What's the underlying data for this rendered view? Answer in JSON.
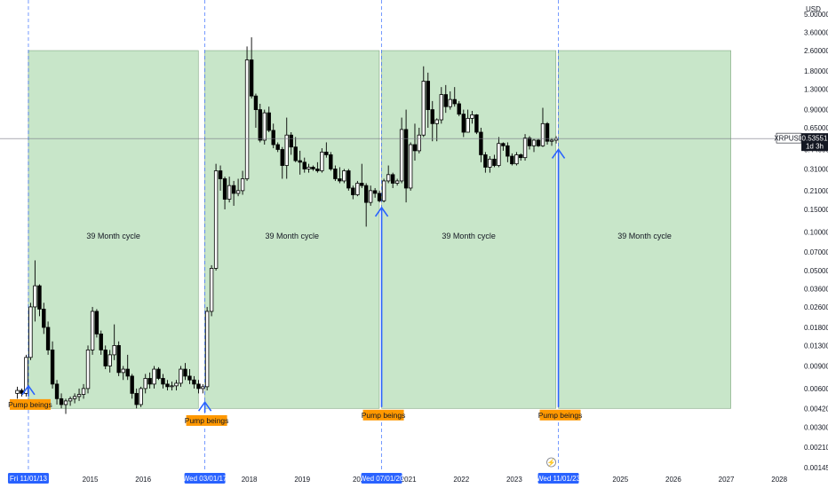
{
  "chart_data": {
    "type": "candlestick",
    "symbol": "XRPUSD",
    "currency": "USD",
    "scale": "log",
    "ylim": [
      0.00145,
      5.0
    ],
    "xlim": [
      "2013-09-01",
      "2028-06-01"
    ],
    "y_ticks": [
      "5.00000",
      "3.60000",
      "2.60000",
      "1.80000",
      "1.30000",
      "0.90000",
      "0.65000",
      "0.44000",
      "0.31000",
      "0.21000",
      "0.15000",
      "0.10000",
      "0.07000",
      "0.05000",
      "0.03600",
      "0.02600",
      "0.01800",
      "0.01300",
      "0.00900",
      "0.00600",
      "0.00420",
      "0.00300",
      "0.00210",
      "0.00145"
    ],
    "x_ticks": [
      {
        "label": "2015",
        "date": "2015-01-01"
      },
      {
        "label": "2016",
        "date": "2016-01-01"
      },
      {
        "label": "2018",
        "date": "2018-01-01"
      },
      {
        "label": "2019",
        "date": "2019-01-01"
      },
      {
        "label": "2021",
        "date": "2021-01-01"
      },
      {
        "label": "2022",
        "date": "2022-01-01"
      },
      {
        "label": "2023",
        "date": "2023-01-01"
      },
      {
        "label": "2025",
        "date": "2025-01-01"
      },
      {
        "label": "2026",
        "date": "2026-01-01"
      },
      {
        "label": "2027",
        "date": "2027-01-01"
      },
      {
        "label": "2028",
        "date": "2028-01-01"
      }
    ],
    "date_badges": [
      {
        "label": "Fri 11/01/13",
        "date": "2013-11-01"
      },
      {
        "label": "Wed 03/01/17",
        "date": "2017-03-01"
      },
      {
        "label": "Wed 07/01/20",
        "date": "2020-07-01"
      },
      {
        "label": "Wed 11/01/23",
        "date": "2023-11-01"
      }
    ],
    "partial_tick_label": "2020",
    "cycles": [
      {
        "start": "2013-11-01",
        "end": "2017-01-15",
        "label": "39 Month cycle"
      },
      {
        "start": "2017-03-01",
        "end": "2020-06-15",
        "label": "39 Month cycle"
      },
      {
        "start": "2020-07-01",
        "end": "2023-10-15",
        "label": "39 Month cycle"
      },
      {
        "start": "2023-11-01",
        "end": "2027-02-01",
        "label": "39 Month cycle"
      }
    ],
    "cycle_top": 2.6,
    "cycle_bottom": 0.0042,
    "pump_markers": [
      {
        "date": "2013-11-01",
        "text": "Pump beings",
        "arrow_from": 0.0052,
        "arrow_to": 0.0063
      },
      {
        "date": "2017-03-01",
        "text": "Pump beings",
        "arrow_from": 0.0039,
        "arrow_to": 0.0047
      },
      {
        "date": "2020-07-01",
        "text": "Pump beings",
        "arrow_from": 0.0043,
        "arrow_to": 0.155
      },
      {
        "date": "2023-11-01",
        "text": "Pump beings",
        "arrow_from": 0.0043,
        "arrow_to": 0.44
      }
    ],
    "last_price": {
      "label": "0.53551",
      "value": 0.53551,
      "countdown": "1d 3h"
    },
    "candles": [
      {
        "d": "2013-08",
        "o": 0.0055,
        "h": 0.0062,
        "l": 0.005,
        "c": 0.0058
      },
      {
        "d": "2013-09",
        "o": 0.0058,
        "h": 0.006,
        "l": 0.0052,
        "c": 0.0055
      },
      {
        "d": "2013-10",
        "o": 0.0055,
        "h": 0.011,
        "l": 0.0052,
        "c": 0.0105
      },
      {
        "d": "2013-11",
        "o": 0.0105,
        "h": 0.028,
        "l": 0.01,
        "c": 0.026
      },
      {
        "d": "2013-12",
        "o": 0.026,
        "h": 0.06,
        "l": 0.02,
        "c": 0.038
      },
      {
        "d": "2014-01",
        "o": 0.038,
        "h": 0.039,
        "l": 0.022,
        "c": 0.025
      },
      {
        "d": "2014-02",
        "o": 0.025,
        "h": 0.028,
        "l": 0.016,
        "c": 0.018
      },
      {
        "d": "2014-03",
        "o": 0.018,
        "h": 0.02,
        "l": 0.011,
        "c": 0.012
      },
      {
        "d": "2014-04",
        "o": 0.012,
        "h": 0.014,
        "l": 0.006,
        "c": 0.0065
      },
      {
        "d": "2014-05",
        "o": 0.0065,
        "h": 0.007,
        "l": 0.0045,
        "c": 0.005
      },
      {
        "d": "2014-06",
        "o": 0.005,
        "h": 0.0055,
        "l": 0.0042,
        "c": 0.0045
      },
      {
        "d": "2014-07",
        "o": 0.0045,
        "h": 0.005,
        "l": 0.0038,
        "c": 0.0048
      },
      {
        "d": "2014-08",
        "o": 0.0048,
        "h": 0.0052,
        "l": 0.0044,
        "c": 0.005
      },
      {
        "d": "2014-09",
        "o": 0.005,
        "h": 0.0055,
        "l": 0.0046,
        "c": 0.0052
      },
      {
        "d": "2014-10",
        "o": 0.0052,
        "h": 0.006,
        "l": 0.0048,
        "c": 0.0054
      },
      {
        "d": "2014-11",
        "o": 0.0054,
        "h": 0.0065,
        "l": 0.005,
        "c": 0.006
      },
      {
        "d": "2014-12",
        "o": 0.006,
        "h": 0.013,
        "l": 0.0055,
        "c": 0.012
      },
      {
        "d": "2015-01",
        "o": 0.012,
        "h": 0.026,
        "l": 0.011,
        "c": 0.024
      },
      {
        "d": "2015-02",
        "o": 0.024,
        "h": 0.025,
        "l": 0.015,
        "c": 0.016
      },
      {
        "d": "2015-03",
        "o": 0.016,
        "h": 0.017,
        "l": 0.011,
        "c": 0.012
      },
      {
        "d": "2015-04",
        "o": 0.012,
        "h": 0.013,
        "l": 0.0085,
        "c": 0.009
      },
      {
        "d": "2015-05",
        "o": 0.009,
        "h": 0.012,
        "l": 0.008,
        "c": 0.011
      },
      {
        "d": "2015-06",
        "o": 0.011,
        "h": 0.019,
        "l": 0.01,
        "c": 0.013
      },
      {
        "d": "2015-07",
        "o": 0.013,
        "h": 0.014,
        "l": 0.0075,
        "c": 0.008
      },
      {
        "d": "2015-08",
        "o": 0.008,
        "h": 0.009,
        "l": 0.007,
        "c": 0.0085
      },
      {
        "d": "2015-09",
        "o": 0.0085,
        "h": 0.011,
        "l": 0.007,
        "c": 0.0075
      },
      {
        "d": "2015-10",
        "o": 0.0075,
        "h": 0.0078,
        "l": 0.005,
        "c": 0.0055
      },
      {
        "d": "2015-11",
        "o": 0.0055,
        "h": 0.006,
        "l": 0.0042,
        "c": 0.0045
      },
      {
        "d": "2015-12",
        "o": 0.0045,
        "h": 0.0062,
        "l": 0.0043,
        "c": 0.006
      },
      {
        "d": "2016-01",
        "o": 0.006,
        "h": 0.0078,
        "l": 0.0055,
        "c": 0.0072
      },
      {
        "d": "2016-02",
        "o": 0.0072,
        "h": 0.008,
        "l": 0.006,
        "c": 0.0065
      },
      {
        "d": "2016-03",
        "o": 0.0065,
        "h": 0.009,
        "l": 0.006,
        "c": 0.0085
      },
      {
        "d": "2016-04",
        "o": 0.0085,
        "h": 0.0088,
        "l": 0.007,
        "c": 0.0072
      },
      {
        "d": "2016-05",
        "o": 0.0072,
        "h": 0.0078,
        "l": 0.006,
        "c": 0.0065
      },
      {
        "d": "2016-06",
        "o": 0.0065,
        "h": 0.007,
        "l": 0.0058,
        "c": 0.0062
      },
      {
        "d": "2016-07",
        "o": 0.0062,
        "h": 0.0068,
        "l": 0.0058,
        "c": 0.0063
      },
      {
        "d": "2016-08",
        "o": 0.0063,
        "h": 0.007,
        "l": 0.0058,
        "c": 0.0066
      },
      {
        "d": "2016-09",
        "o": 0.0066,
        "h": 0.009,
        "l": 0.0062,
        "c": 0.0085
      },
      {
        "d": "2016-10",
        "o": 0.0085,
        "h": 0.0095,
        "l": 0.007,
        "c": 0.0075
      },
      {
        "d": "2016-11",
        "o": 0.0075,
        "h": 0.0085,
        "l": 0.0065,
        "c": 0.007
      },
      {
        "d": "2016-12",
        "o": 0.007,
        "h": 0.0075,
        "l": 0.006,
        "c": 0.0065
      },
      {
        "d": "2017-01",
        "o": 0.0065,
        "h": 0.007,
        "l": 0.0055,
        "c": 0.006
      },
      {
        "d": "2017-02",
        "o": 0.006,
        "h": 0.0065,
        "l": 0.0055,
        "c": 0.0062
      },
      {
        "d": "2017-03",
        "o": 0.0062,
        "h": 0.026,
        "l": 0.0058,
        "c": 0.024
      },
      {
        "d": "2017-04",
        "o": 0.024,
        "h": 0.055,
        "l": 0.022,
        "c": 0.052
      },
      {
        "d": "2017-05",
        "o": 0.052,
        "h": 0.34,
        "l": 0.05,
        "c": 0.3
      },
      {
        "d": "2017-06",
        "o": 0.3,
        "h": 0.33,
        "l": 0.21,
        "c": 0.26
      },
      {
        "d": "2017-07",
        "o": 0.26,
        "h": 0.27,
        "l": 0.15,
        "c": 0.18
      },
      {
        "d": "2017-08",
        "o": 0.18,
        "h": 0.27,
        "l": 0.17,
        "c": 0.23
      },
      {
        "d": "2017-09",
        "o": 0.23,
        "h": 0.25,
        "l": 0.16,
        "c": 0.2
      },
      {
        "d": "2017-10",
        "o": 0.2,
        "h": 0.26,
        "l": 0.19,
        "c": 0.21
      },
      {
        "d": "2017-11",
        "o": 0.21,
        "h": 0.3,
        "l": 0.195,
        "c": 0.26
      },
      {
        "d": "2017-12",
        "o": 0.26,
        "h": 2.8,
        "l": 0.25,
        "c": 2.2
      },
      {
        "d": "2018-01",
        "o": 2.2,
        "h": 3.3,
        "l": 1.1,
        "c": 1.15
      },
      {
        "d": "2018-02",
        "o": 1.15,
        "h": 1.2,
        "l": 0.65,
        "c": 0.9
      },
      {
        "d": "2018-03",
        "o": 0.9,
        "h": 1.0,
        "l": 0.5,
        "c": 0.52
      },
      {
        "d": "2018-04",
        "o": 0.52,
        "h": 0.9,
        "l": 0.48,
        "c": 0.85
      },
      {
        "d": "2018-05",
        "o": 0.85,
        "h": 0.95,
        "l": 0.6,
        "c": 0.62
      },
      {
        "d": "2018-06",
        "o": 0.62,
        "h": 0.7,
        "l": 0.45,
        "c": 0.48
      },
      {
        "d": "2018-07",
        "o": 0.48,
        "h": 0.5,
        "l": 0.42,
        "c": 0.44
      },
      {
        "d": "2018-08",
        "o": 0.44,
        "h": 0.46,
        "l": 0.26,
        "c": 0.33
      },
      {
        "d": "2018-09",
        "o": 0.33,
        "h": 0.78,
        "l": 0.26,
        "c": 0.57
      },
      {
        "d": "2018-10",
        "o": 0.57,
        "h": 0.6,
        "l": 0.4,
        "c": 0.46
      },
      {
        "d": "2018-11",
        "o": 0.46,
        "h": 0.55,
        "l": 0.35,
        "c": 0.36
      },
      {
        "d": "2018-12",
        "o": 0.36,
        "h": 0.43,
        "l": 0.28,
        "c": 0.35
      },
      {
        "d": "2019-01",
        "o": 0.35,
        "h": 0.38,
        "l": 0.29,
        "c": 0.31
      },
      {
        "d": "2019-02",
        "o": 0.31,
        "h": 0.34,
        "l": 0.29,
        "c": 0.32
      },
      {
        "d": "2019-03",
        "o": 0.32,
        "h": 0.33,
        "l": 0.3,
        "c": 0.31
      },
      {
        "d": "2019-04",
        "o": 0.31,
        "h": 0.35,
        "l": 0.29,
        "c": 0.3
      },
      {
        "d": "2019-05",
        "o": 0.3,
        "h": 0.45,
        "l": 0.29,
        "c": 0.42
      },
      {
        "d": "2019-06",
        "o": 0.42,
        "h": 0.5,
        "l": 0.38,
        "c": 0.4
      },
      {
        "d": "2019-07",
        "o": 0.4,
        "h": 0.42,
        "l": 0.3,
        "c": 0.31
      },
      {
        "d": "2019-08",
        "o": 0.31,
        "h": 0.33,
        "l": 0.25,
        "c": 0.26
      },
      {
        "d": "2019-09",
        "o": 0.26,
        "h": 0.32,
        "l": 0.24,
        "c": 0.25
      },
      {
        "d": "2019-10",
        "o": 0.25,
        "h": 0.31,
        "l": 0.24,
        "c": 0.3
      },
      {
        "d": "2019-11",
        "o": 0.3,
        "h": 0.31,
        "l": 0.21,
        "c": 0.22
      },
      {
        "d": "2019-12",
        "o": 0.22,
        "h": 0.23,
        "l": 0.18,
        "c": 0.195
      },
      {
        "d": "2020-01",
        "o": 0.195,
        "h": 0.25,
        "l": 0.19,
        "c": 0.24
      },
      {
        "d": "2020-02",
        "o": 0.24,
        "h": 0.34,
        "l": 0.22,
        "c": 0.23
      },
      {
        "d": "2020-03",
        "o": 0.23,
        "h": 0.24,
        "l": 0.11,
        "c": 0.17
      },
      {
        "d": "2020-04",
        "o": 0.17,
        "h": 0.23,
        "l": 0.16,
        "c": 0.21
      },
      {
        "d": "2020-05",
        "o": 0.21,
        "h": 0.22,
        "l": 0.185,
        "c": 0.2
      },
      {
        "d": "2020-06",
        "o": 0.2,
        "h": 0.21,
        "l": 0.17,
        "c": 0.175
      },
      {
        "d": "2020-07",
        "o": 0.175,
        "h": 0.26,
        "l": 0.17,
        "c": 0.25
      },
      {
        "d": "2020-08",
        "o": 0.25,
        "h": 0.33,
        "l": 0.24,
        "c": 0.28
      },
      {
        "d": "2020-09",
        "o": 0.28,
        "h": 0.29,
        "l": 0.22,
        "c": 0.24
      },
      {
        "d": "2020-10",
        "o": 0.24,
        "h": 0.26,
        "l": 0.23,
        "c": 0.25
      },
      {
        "d": "2020-11",
        "o": 0.25,
        "h": 0.78,
        "l": 0.24,
        "c": 0.63
      },
      {
        "d": "2020-12",
        "o": 0.63,
        "h": 0.9,
        "l": 0.17,
        "c": 0.22
      },
      {
        "d": "2021-01",
        "o": 0.22,
        "h": 0.5,
        "l": 0.21,
        "c": 0.48
      },
      {
        "d": "2021-02",
        "o": 0.48,
        "h": 0.7,
        "l": 0.36,
        "c": 0.43
      },
      {
        "d": "2021-03",
        "o": 0.43,
        "h": 0.65,
        "l": 0.41,
        "c": 0.57
      },
      {
        "d": "2021-04",
        "o": 0.57,
        "h": 1.96,
        "l": 0.55,
        "c": 1.5
      },
      {
        "d": "2021-05",
        "o": 1.5,
        "h": 1.75,
        "l": 0.65,
        "c": 0.9
      },
      {
        "d": "2021-06",
        "o": 0.9,
        "h": 1.05,
        "l": 0.51,
        "c": 0.7
      },
      {
        "d": "2021-07",
        "o": 0.7,
        "h": 0.77,
        "l": 0.51,
        "c": 0.75
      },
      {
        "d": "2021-08",
        "o": 0.75,
        "h": 1.35,
        "l": 0.7,
        "c": 1.18
      },
      {
        "d": "2021-09",
        "o": 1.18,
        "h": 1.4,
        "l": 0.85,
        "c": 0.95
      },
      {
        "d": "2021-10",
        "o": 0.95,
        "h": 1.25,
        "l": 0.9,
        "c": 1.08
      },
      {
        "d": "2021-11",
        "o": 1.08,
        "h": 1.35,
        "l": 0.95,
        "c": 1.0
      },
      {
        "d": "2021-12",
        "o": 1.0,
        "h": 1.05,
        "l": 0.8,
        "c": 0.83
      },
      {
        "d": "2022-01",
        "o": 0.83,
        "h": 0.9,
        "l": 0.55,
        "c": 0.6
      },
      {
        "d": "2022-02",
        "o": 0.6,
        "h": 0.9,
        "l": 0.6,
        "c": 0.77
      },
      {
        "d": "2022-03",
        "o": 0.77,
        "h": 0.88,
        "l": 0.7,
        "c": 0.82
      },
      {
        "d": "2022-04",
        "o": 0.82,
        "h": 0.83,
        "l": 0.58,
        "c": 0.6
      },
      {
        "d": "2022-05",
        "o": 0.6,
        "h": 0.65,
        "l": 0.35,
        "c": 0.4
      },
      {
        "d": "2022-06",
        "o": 0.4,
        "h": 0.42,
        "l": 0.29,
        "c": 0.32
      },
      {
        "d": "2022-07",
        "o": 0.32,
        "h": 0.39,
        "l": 0.29,
        "c": 0.37
      },
      {
        "d": "2022-08",
        "o": 0.37,
        "h": 0.4,
        "l": 0.32,
        "c": 0.33
      },
      {
        "d": "2022-09",
        "o": 0.33,
        "h": 0.55,
        "l": 0.32,
        "c": 0.49
      },
      {
        "d": "2022-10",
        "o": 0.49,
        "h": 0.5,
        "l": 0.43,
        "c": 0.47
      },
      {
        "d": "2022-11",
        "o": 0.47,
        "h": 0.5,
        "l": 0.35,
        "c": 0.39
      },
      {
        "d": "2022-12",
        "o": 0.39,
        "h": 0.41,
        "l": 0.33,
        "c": 0.34
      },
      {
        "d": "2023-01",
        "o": 0.34,
        "h": 0.42,
        "l": 0.33,
        "c": 0.4
      },
      {
        "d": "2023-02",
        "o": 0.4,
        "h": 0.41,
        "l": 0.36,
        "c": 0.38
      },
      {
        "d": "2023-03",
        "o": 0.38,
        "h": 0.58,
        "l": 0.36,
        "c": 0.54
      },
      {
        "d": "2023-04",
        "o": 0.54,
        "h": 0.56,
        "l": 0.44,
        "c": 0.47
      },
      {
        "d": "2023-05",
        "o": 0.47,
        "h": 0.53,
        "l": 0.42,
        "c": 0.52
      },
      {
        "d": "2023-06",
        "o": 0.52,
        "h": 0.53,
        "l": 0.46,
        "c": 0.47
      },
      {
        "d": "2023-07",
        "o": 0.47,
        "h": 0.93,
        "l": 0.46,
        "c": 0.7
      },
      {
        "d": "2023-08",
        "o": 0.7,
        "h": 0.72,
        "l": 0.48,
        "c": 0.51
      },
      {
        "d": "2023-09",
        "o": 0.51,
        "h": 0.54,
        "l": 0.47,
        "c": 0.52
      },
      {
        "d": "2023-10",
        "o": 0.52,
        "h": 0.56,
        "l": 0.49,
        "c": 0.5355
      }
    ],
    "colors": {
      "up": "#ffffff",
      "down": "#000000",
      "wick": "#000000",
      "cycle_fill": "#c8e6c9",
      "cycle_stroke": "#7fa67f",
      "accent_blue": "#2962ff",
      "pump_label": "#ff9800",
      "price_line": "#787b86"
    }
  }
}
